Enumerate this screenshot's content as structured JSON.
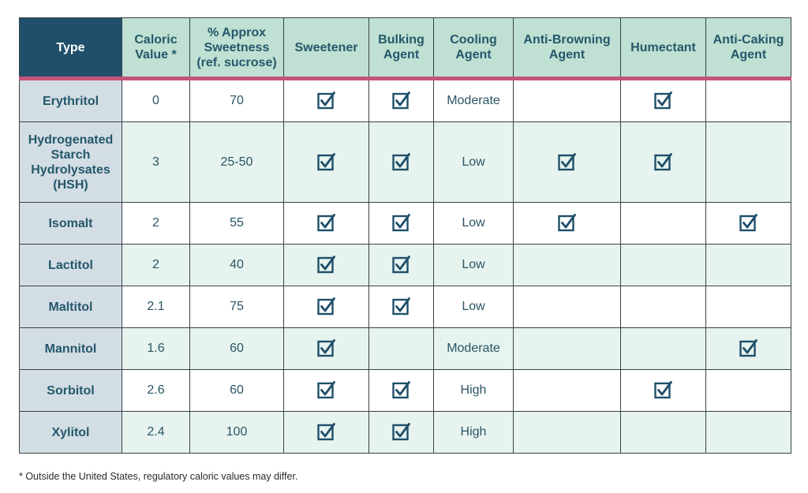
{
  "colors": {
    "header_bg": "#bfe0d2",
    "type_header_bg": "#1f4f6a",
    "accent_rule": "#c4557a",
    "check_color": "#1f4f6a",
    "alt_row_bg": "#e6f3ee",
    "type_col_bg": "#d3dde4"
  },
  "headers": {
    "type": "Type",
    "caloric": [
      "Caloric",
      "Value *"
    ],
    "sweetness": [
      "% Approx",
      "Sweetness",
      "(ref. sucrose)"
    ],
    "sweetener": "Sweetener",
    "bulking": [
      "Bulking",
      "Agent"
    ],
    "cooling": [
      "Cooling",
      "Agent"
    ],
    "antibrowning": [
      "Anti-Browning",
      "Agent"
    ],
    "humectant": "Humectant",
    "anticaking": [
      "Anti-Caking",
      "Agent"
    ]
  },
  "rows": [
    {
      "type": [
        "Erythritol"
      ],
      "caloric": "0",
      "sweetness": "70",
      "sweetener": true,
      "bulking": true,
      "cooling": "Moderate",
      "antibrowning": false,
      "humectant": true,
      "anticaking": false
    },
    {
      "type": [
        "Hydrogenated",
        "Starch",
        "Hydrolysates",
        "(HSH)"
      ],
      "caloric": "3",
      "sweetness": "25-50",
      "sweetener": true,
      "bulking": true,
      "cooling": "Low",
      "antibrowning": true,
      "humectant": true,
      "anticaking": false
    },
    {
      "type": [
        "Isomalt"
      ],
      "caloric": "2",
      "sweetness": "55",
      "sweetener": true,
      "bulking": true,
      "cooling": "Low",
      "antibrowning": true,
      "humectant": false,
      "anticaking": true
    },
    {
      "type": [
        "Lactitol"
      ],
      "caloric": "2",
      "sweetness": "40",
      "sweetener": true,
      "bulking": true,
      "cooling": "Low",
      "antibrowning": false,
      "humectant": false,
      "anticaking": false
    },
    {
      "type": [
        "Maltitol"
      ],
      "caloric": "2.1",
      "sweetness": "75",
      "sweetener": true,
      "bulking": true,
      "cooling": "Low",
      "antibrowning": false,
      "humectant": false,
      "anticaking": false
    },
    {
      "type": [
        "Mannitol"
      ],
      "caloric": "1.6",
      "sweetness": "60",
      "sweetener": true,
      "bulking": false,
      "cooling": "Moderate",
      "antibrowning": false,
      "humectant": false,
      "anticaking": true
    },
    {
      "type": [
        "Sorbitol"
      ],
      "caloric": "2.6",
      "sweetness": "60",
      "sweetener": true,
      "bulking": true,
      "cooling": "High",
      "antibrowning": false,
      "humectant": true,
      "anticaking": false
    },
    {
      "type": [
        "Xylitol"
      ],
      "caloric": "2.4",
      "sweetness": "100",
      "sweetener": true,
      "bulking": true,
      "cooling": "High",
      "antibrowning": false,
      "humectant": false,
      "anticaking": false
    }
  ],
  "footnote": "* Outside the United States, regulatory caloric values may differ."
}
